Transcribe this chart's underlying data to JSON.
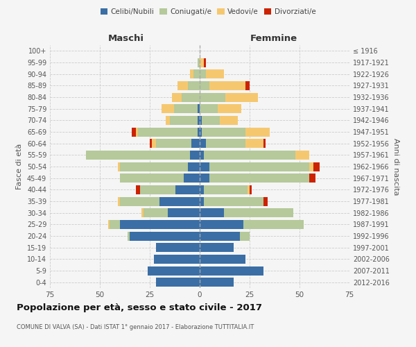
{
  "age_groups": [
    "0-4",
    "5-9",
    "10-14",
    "15-19",
    "20-24",
    "25-29",
    "30-34",
    "35-39",
    "40-44",
    "45-49",
    "50-54",
    "55-59",
    "60-64",
    "65-69",
    "70-74",
    "75-79",
    "80-84",
    "85-89",
    "90-94",
    "95-99",
    "100+"
  ],
  "birth_years": [
    "2012-2016",
    "2007-2011",
    "2002-2006",
    "1997-2001",
    "1992-1996",
    "1987-1991",
    "1982-1986",
    "1977-1981",
    "1972-1976",
    "1967-1971",
    "1962-1966",
    "1957-1961",
    "1952-1956",
    "1947-1951",
    "1942-1946",
    "1937-1941",
    "1932-1936",
    "1927-1931",
    "1922-1926",
    "1917-1921",
    "≤ 1916"
  ],
  "male": {
    "celibi": [
      22,
      26,
      23,
      22,
      35,
      40,
      16,
      20,
      12,
      8,
      6,
      5,
      4,
      1,
      1,
      1,
      0,
      0,
      0,
      0,
      0
    ],
    "coniugati": [
      0,
      0,
      0,
      0,
      1,
      5,
      12,
      20,
      18,
      32,
      34,
      52,
      18,
      30,
      14,
      12,
      9,
      6,
      3,
      1,
      0
    ],
    "vedovi": [
      0,
      0,
      0,
      0,
      0,
      1,
      1,
      1,
      0,
      0,
      1,
      0,
      2,
      1,
      2,
      6,
      5,
      5,
      2,
      0,
      0
    ],
    "divorziati": [
      0,
      0,
      0,
      0,
      0,
      0,
      0,
      0,
      2,
      0,
      0,
      0,
      1,
      2,
      0,
      0,
      0,
      0,
      0,
      0,
      0
    ]
  },
  "female": {
    "nubili": [
      17,
      32,
      23,
      17,
      20,
      22,
      12,
      2,
      2,
      5,
      5,
      2,
      3,
      1,
      1,
      0,
      0,
      0,
      0,
      0,
      0
    ],
    "coniugate": [
      0,
      0,
      0,
      0,
      5,
      30,
      35,
      30,
      22,
      50,
      50,
      46,
      20,
      22,
      9,
      9,
      13,
      5,
      3,
      0,
      0
    ],
    "vedove": [
      0,
      0,
      0,
      0,
      0,
      0,
      0,
      0,
      1,
      0,
      2,
      7,
      9,
      12,
      9,
      12,
      16,
      18,
      9,
      2,
      0
    ],
    "divorziate": [
      0,
      0,
      0,
      0,
      0,
      0,
      0,
      2,
      1,
      3,
      3,
      0,
      1,
      0,
      0,
      0,
      0,
      2,
      0,
      1,
      0
    ]
  },
  "colors": {
    "celibi": "#3a6ea5",
    "coniugati": "#b5c99a",
    "vedovi": "#f5c870",
    "divorziati": "#cc2200"
  },
  "xlim": 75,
  "title": "Popolazione per età, sesso e stato civile - 2017",
  "subtitle": "COMUNE DI VALVA (SA) - Dati ISTAT 1° gennaio 2017 - Elaborazione TUTTITALIA.IT",
  "ylabel_left": "Fasce di età",
  "ylabel_right": "Anni di nascita",
  "xlabel_maschi": "Maschi",
  "xlabel_femmine": "Femmine",
  "bg_color": "#f5f5f5",
  "grid_color": "#cccccc"
}
